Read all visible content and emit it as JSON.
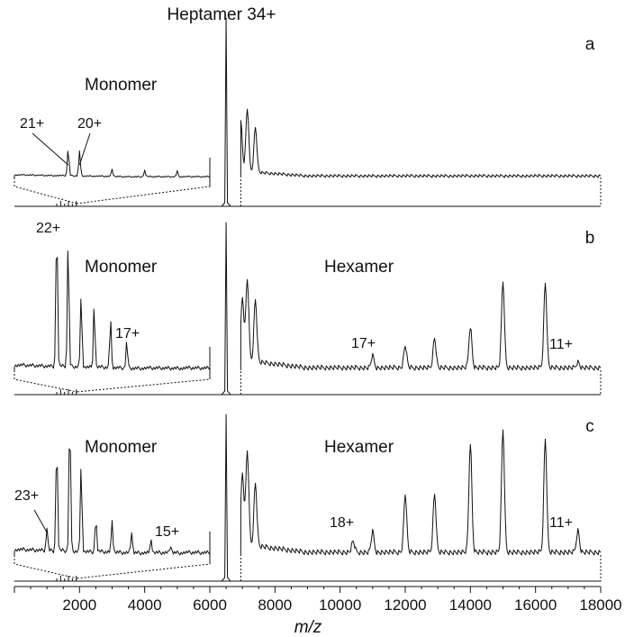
{
  "chart_data": {
    "type": "line",
    "xlabel": "m/z",
    "xlim": [
      0,
      18000
    ],
    "xticks": [
      2000,
      4000,
      6000,
      8000,
      10000,
      12000,
      14000,
      16000,
      18000
    ],
    "top_label": "Heptamer 34+",
    "panels": [
      {
        "id": "a",
        "panel_label": "a",
        "region_labels": [
          "Monomer"
        ],
        "annotations": [
          {
            "text": "21+",
            "x": 1650
          },
          {
            "text": "20+",
            "x": 2000
          }
        ],
        "main_peak": {
          "x": 6500
        },
        "peak_series": {
          "name": "Monomer (zoomed)",
          "peaks": [
            {
              "x": 1650,
              "y": 0.3
            },
            {
              "x": 2000,
              "y": 0.28
            },
            {
              "x": 3000,
              "y": 0.08
            },
            {
              "x": 4000,
              "y": 0.07
            },
            {
              "x": 5000,
              "y": 0.06
            }
          ]
        },
        "heptamer_region": {
          "peaks": [
            {
              "x": 6950,
              "y": 0.55
            },
            {
              "x": 7150,
              "y": 0.7
            },
            {
              "x": 7400,
              "y": 0.5
            }
          ]
        },
        "hexamer_series": {
          "peaks": []
        }
      },
      {
        "id": "b",
        "panel_label": "b",
        "region_labels": [
          "Monomer",
          "Hexamer"
        ],
        "annotations": [
          {
            "text": "22+",
            "x": 1300
          },
          {
            "text": "17+",
            "x": 3600
          },
          {
            "text": "17+",
            "x": 11000
          },
          {
            "text": "11+",
            "x": 17300
          }
        ],
        "main_peak": {
          "x": 6500
        },
        "peak_series": {
          "name": "Monomer (zoomed)",
          "peaks": [
            {
              "x": 1300,
              "y": 1.0
            },
            {
              "x": 1650,
              "y": 0.85
            },
            {
              "x": 2050,
              "y": 0.48
            },
            {
              "x": 2450,
              "y": 0.42
            },
            {
              "x": 2950,
              "y": 0.32
            },
            {
              "x": 3450,
              "y": 0.18
            }
          ]
        },
        "heptamer_region": {
          "peaks": [
            {
              "x": 7000,
              "y": 0.42
            },
            {
              "x": 7150,
              "y": 0.55
            },
            {
              "x": 7400,
              "y": 0.42
            }
          ]
        },
        "hexamer_series": {
          "name": "Hexamer",
          "peaks": [
            {
              "x": 11000,
              "y": 0.08
            },
            {
              "x": 12000,
              "y": 0.15
            },
            {
              "x": 12900,
              "y": 0.2
            },
            {
              "x": 14000,
              "y": 0.28
            },
            {
              "x": 15000,
              "y": 0.58
            },
            {
              "x": 16300,
              "y": 0.57
            },
            {
              "x": 17300,
              "y": 0.04
            }
          ]
        }
      },
      {
        "id": "c",
        "panel_label": "c",
        "region_labels": [
          "Monomer",
          "Hexamer"
        ],
        "annotations": [
          {
            "text": "23+",
            "x": 1000
          },
          {
            "text": "15+",
            "x": 4800
          },
          {
            "text": "18+",
            "x": 10400
          },
          {
            "text": "11+",
            "x": 17300
          }
        ],
        "main_peak": {
          "x": 6500
        },
        "peak_series": {
          "name": "Monomer (zoomed)",
          "peaks": [
            {
              "x": 1000,
              "y": 0.15
            },
            {
              "x": 1300,
              "y": 0.72
            },
            {
              "x": 1700,
              "y": 0.88
            },
            {
              "x": 2050,
              "y": 0.55
            },
            {
              "x": 2500,
              "y": 0.22
            },
            {
              "x": 3000,
              "y": 0.2
            },
            {
              "x": 3600,
              "y": 0.14
            },
            {
              "x": 4200,
              "y": 0.08
            },
            {
              "x": 4800,
              "y": 0.05
            }
          ]
        },
        "heptamer_region": {
          "peaks": [
            {
              "x": 7000,
              "y": 0.45
            },
            {
              "x": 7150,
              "y": 0.6
            },
            {
              "x": 7400,
              "y": 0.4
            }
          ]
        },
        "hexamer_series": {
          "name": "Hexamer",
          "peaks": [
            {
              "x": 10400,
              "y": 0.07
            },
            {
              "x": 11000,
              "y": 0.13
            },
            {
              "x": 12000,
              "y": 0.37
            },
            {
              "x": 12900,
              "y": 0.37
            },
            {
              "x": 14000,
              "y": 0.7
            },
            {
              "x": 15000,
              "y": 0.78
            },
            {
              "x": 16300,
              "y": 0.72
            },
            {
              "x": 17300,
              "y": 0.14
            }
          ]
        }
      }
    ]
  }
}
